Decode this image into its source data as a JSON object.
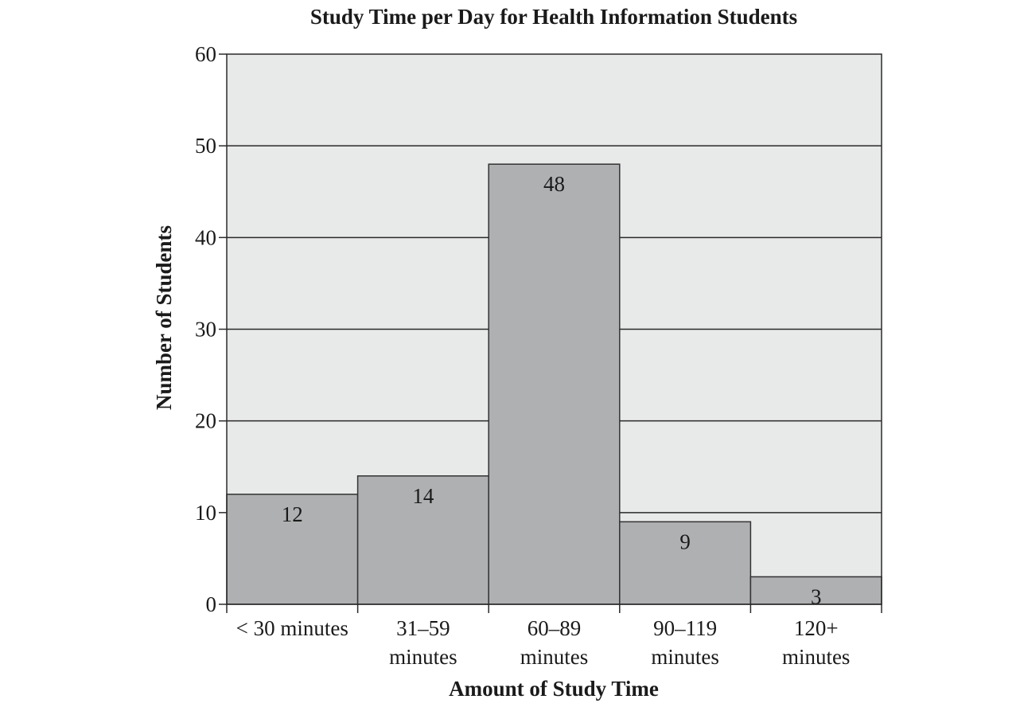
{
  "chart_data": {
    "type": "bar",
    "title": "Study Time per Day for Health Information Students",
    "xlabel": "Amount of Study Time",
    "ylabel": "Number of Students",
    "categories": [
      "< 30 minutes",
      "31–59 minutes",
      "60–89 minutes",
      "90–119 minutes",
      "120+ minutes"
    ],
    "category_lines": [
      [
        "< 30 minutes"
      ],
      [
        "31–59",
        "minutes"
      ],
      [
        "60–89",
        "minutes"
      ],
      [
        "90–119",
        "minutes"
      ],
      [
        "120+",
        "minutes"
      ]
    ],
    "values": [
      12,
      14,
      48,
      9,
      3
    ],
    "data_labels": [
      "12",
      "14",
      "48",
      "9",
      "3"
    ],
    "ylim": [
      0,
      60
    ],
    "yticks": [
      0,
      10,
      20,
      30,
      40,
      50,
      60
    ],
    "ytick_labels": [
      "0",
      "10",
      "20",
      "30",
      "40",
      "50",
      "60"
    ],
    "grid": true,
    "legend": "none"
  },
  "colors": {
    "plot_background": "#e8e9e9",
    "bar_fill": "#afb0b2",
    "bar_stroke": "#333333",
    "grid_line": "#2a2a2a",
    "frame": "#2a2a2a",
    "text": "#1a1a1a"
  }
}
